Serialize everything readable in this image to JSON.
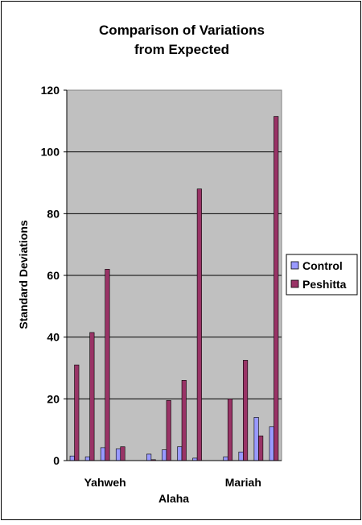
{
  "chart_data": {
    "type": "bar",
    "title_lines": [
      "Comparison of Variations",
      "from Expected"
    ],
    "ylabel": "Standard Deviations",
    "xlabel": "Alaha",
    "ylim": [
      0,
      120
    ],
    "yticks": [
      "0",
      "20",
      "40",
      "60",
      "80",
      "100",
      "120"
    ],
    "x_tick_labels": [
      {
        "label": "Yahweh",
        "near_group": 2
      },
      {
        "label": "Mariah",
        "near_group": 11
      }
    ],
    "grid": true,
    "legend_position": "right",
    "series": [
      {
        "name": "Control",
        "color": "#9999ff",
        "values": [
          1.5,
          1.2,
          4.2,
          3.8,
          0,
          2.1,
          3.5,
          4.5,
          0.8,
          0,
          1.2,
          2.8,
          14,
          11
        ]
      },
      {
        "name": "Peshitta",
        "color": "#993366",
        "values": [
          31,
          41.5,
          62,
          4.5,
          0,
          0.3,
          19.5,
          26,
          88,
          0,
          20,
          32.5,
          8,
          111.5
        ]
      }
    ]
  }
}
